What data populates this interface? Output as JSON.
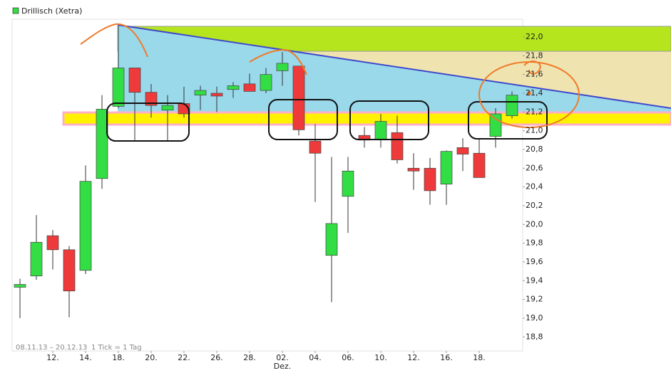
{
  "chart_data": {
    "type": "candlestick",
    "title": "Drillisch (Xetra)",
    "period": "08.11.13 – 20.12.13",
    "tick_info": "1 Tick = 1 Tag",
    "month_label": "Dez.",
    "categories": [
      null,
      null,
      "12.",
      null,
      "14.",
      null,
      "18.",
      null,
      "20.",
      null,
      "22.",
      null,
      "26.",
      null,
      "28.",
      null,
      "02.",
      null,
      "04.",
      null,
      "06.",
      null,
      "10.",
      null,
      "12.",
      null,
      "16.",
      null,
      "18.",
      null,
      null
    ],
    "open": [
      19.33,
      19.45,
      19.88,
      19.73,
      19.51,
      20.49,
      21.26,
      21.67,
      21.41,
      21.22,
      21.29,
      21.38,
      21.4,
      21.44,
      21.5,
      21.43,
      21.64,
      21.69,
      20.89,
      19.67,
      20.3,
      20.95,
      20.91,
      20.98,
      20.6,
      20.6,
      20.43,
      20.82,
      20.76,
      20.94,
      21.16
    ],
    "high": [
      19.42,
      20.1,
      19.94,
      19.77,
      20.63,
      21.38,
      22.13,
      21.67,
      21.5,
      21.38,
      21.47,
      21.48,
      21.47,
      21.52,
      21.61,
      21.67,
      21.84,
      21.69,
      21.07,
      20.72,
      20.72,
      21.04,
      21.18,
      21.16,
      20.76,
      20.71,
      20.79,
      20.92,
      20.92,
      21.24,
      21.42
    ],
    "low": [
      19.0,
      19.41,
      19.52,
      19.01,
      19.47,
      20.38,
      21.24,
      20.9,
      21.14,
      20.89,
      21.14,
      21.22,
      21.2,
      21.35,
      21.42,
      21.4,
      21.48,
      20.95,
      20.24,
      19.17,
      19.91,
      20.82,
      20.82,
      20.65,
      20.37,
      20.21,
      20.21,
      20.57,
      20.5,
      20.82,
      21.13
    ],
    "close": [
      19.36,
      19.81,
      19.73,
      19.29,
      20.46,
      21.23,
      21.67,
      21.41,
      21.27,
      21.27,
      21.18,
      21.43,
      21.37,
      21.48,
      21.42,
      21.6,
      21.72,
      21.01,
      20.76,
      20.01,
      20.57,
      20.9,
      21.1,
      20.69,
      20.57,
      20.36,
      20.78,
      20.75,
      20.5,
      21.18,
      21.38
    ],
    "up_color": "#33dd44",
    "down_color": "#ee3a3a",
    "ylim": [
      18.65,
      22.19
    ],
    "yticks": [
      {
        "value": 18.8,
        "label": "18,8"
      },
      {
        "value": 19.0,
        "label": "19,0"
      },
      {
        "value": 19.2,
        "label": "19,2"
      },
      {
        "value": 19.4,
        "label": "19,4"
      },
      {
        "value": 19.6,
        "label": "19,6"
      },
      {
        "value": 19.8,
        "label": "19,8"
      },
      {
        "value": 20.0,
        "label": "20,0"
      },
      {
        "value": 20.2,
        "label": "20,2"
      },
      {
        "value": 20.4,
        "label": "20,4"
      },
      {
        "value": 20.6,
        "label": "20,6"
      },
      {
        "value": 20.8,
        "label": "20,8"
      },
      {
        "value": 21.0,
        "label": "21,0"
      },
      {
        "value": 21.2,
        "label": "21,2"
      },
      {
        "value": 21.4,
        "label": "21,4"
      },
      {
        "value": 21.6,
        "label": "21,6"
      },
      {
        "value": 21.8,
        "label": "21,8"
      },
      {
        "value": 22.0,
        "label": "22,0"
      }
    ],
    "grid": false
  }
}
